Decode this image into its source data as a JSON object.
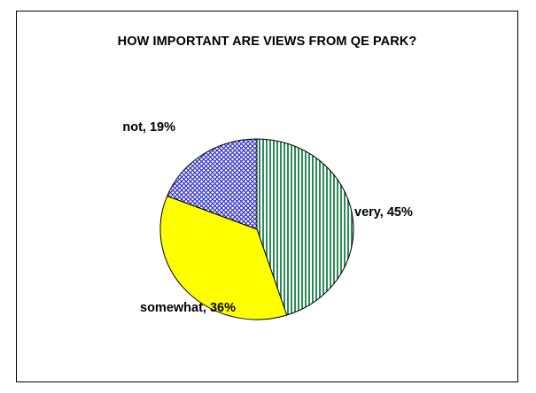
{
  "chart_data": {
    "type": "pie",
    "title": "HOW IMPORTANT ARE VIEWS FROM QE PARK?",
    "slices": [
      {
        "name": "very",
        "value": 45,
        "color": "#2e8b57",
        "pattern": "vertical-stripes",
        "label": "very, 45%"
      },
      {
        "name": "somewhat",
        "value": 36,
        "color": "#ffff00",
        "pattern": "solid",
        "label": "somewhat, 36%"
      },
      {
        "name": "not",
        "value": 19,
        "color": "#3333cc",
        "pattern": "diagonal-crosshatch",
        "label": "not, 19%"
      }
    ]
  }
}
